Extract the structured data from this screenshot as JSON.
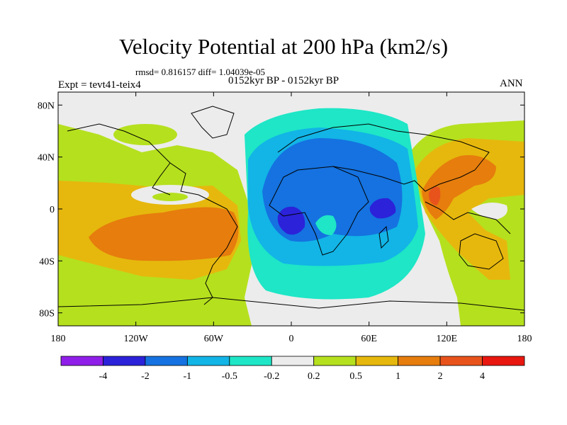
{
  "title": "Velocity Potential at 200 hPa (km2/s)",
  "stats_line": "rmsd= 0.816157 diff= 1.04039e-05",
  "period_line": "0152kyr BP - 0152kyr BP",
  "experiment_line": "Expt = tevt41-teix4",
  "season_label": "ANN",
  "map": {
    "lon_range": [
      -180,
      180
    ],
    "lat_range": [
      -90,
      90
    ],
    "lon_ticks": [
      {
        "value": -180,
        "label": "180"
      },
      {
        "value": -120,
        "label": "120W"
      },
      {
        "value": -60,
        "label": "60W"
      },
      {
        "value": 0,
        "label": "0"
      },
      {
        "value": 60,
        "label": "60E"
      },
      {
        "value": 120,
        "label": "120E"
      },
      {
        "value": 180,
        "label": "180"
      }
    ],
    "lat_ticks": [
      {
        "value": 80,
        "label": "80N"
      },
      {
        "value": 40,
        "label": "40N"
      },
      {
        "value": 0,
        "label": "0"
      },
      {
        "value": -40,
        "label": "40S"
      },
      {
        "value": -80,
        "label": "80S"
      }
    ]
  },
  "colorbar": {
    "colors": [
      "#8f1fe8",
      "#2b22d9",
      "#1572e0",
      "#12b5e6",
      "#1ee6c6",
      "#ececec",
      "#b5e01e",
      "#e6b80d",
      "#e67d0d",
      "#e8531c",
      "#e81710"
    ],
    "labels": [
      "-4",
      "-2",
      "-1",
      "-0.5",
      "-0.2",
      "0.2",
      "0.5",
      "1",
      "2",
      "4"
    ]
  }
}
